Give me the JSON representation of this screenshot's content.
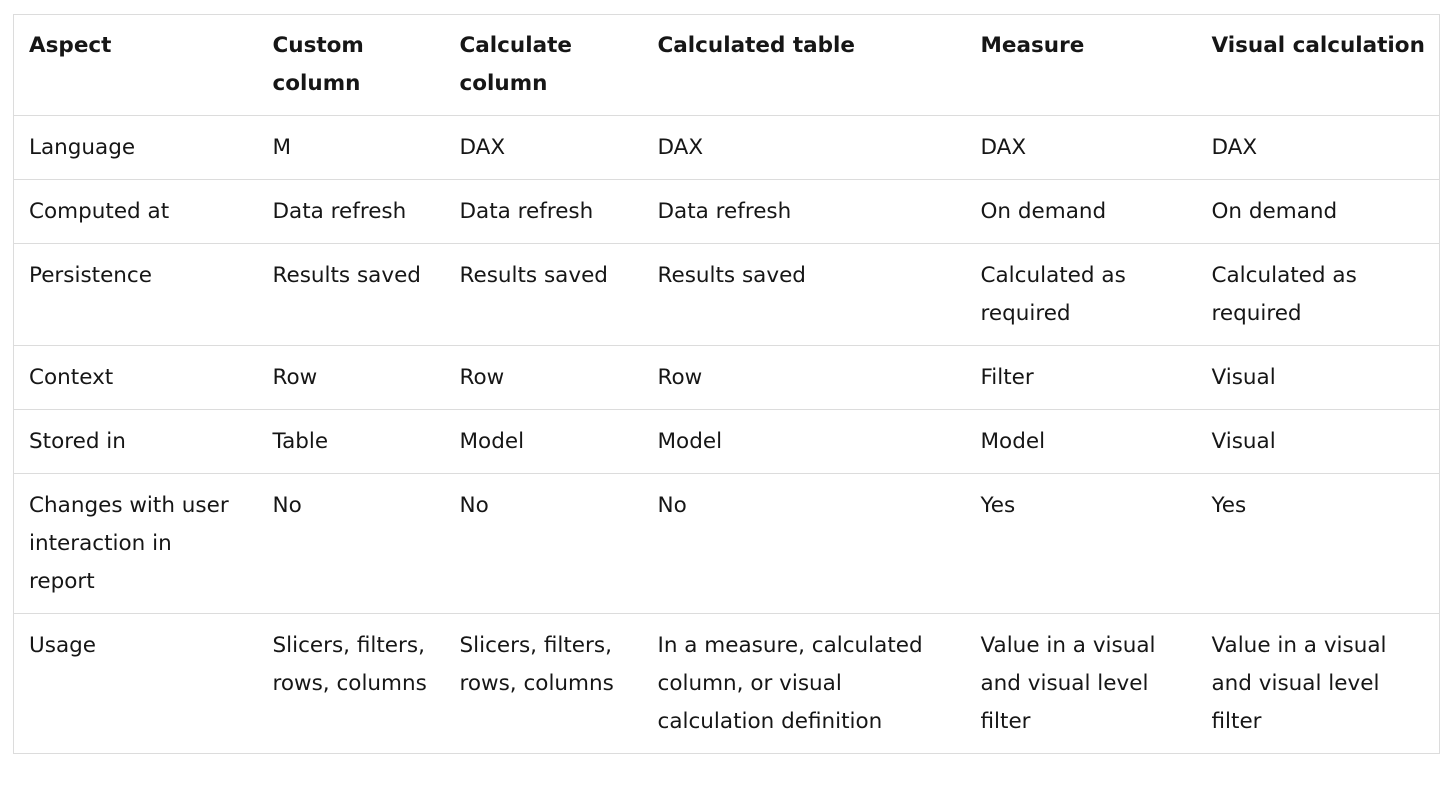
{
  "table": {
    "headers": [
      "Aspect",
      "Custom column",
      "Calculate column",
      "Calculated table",
      "Measure",
      "Visual calculation"
    ],
    "rows": [
      [
        "Language",
        "M",
        "DAX",
        "DAX",
        "DAX",
        "DAX"
      ],
      [
        "Computed at",
        "Data refresh",
        "Data refresh",
        "Data refresh",
        "On demand",
        "On demand"
      ],
      [
        "Persistence",
        "Results saved",
        "Results saved",
        "Results saved",
        "Calculated as required",
        "Calculated as required"
      ],
      [
        "Context",
        "Row",
        "Row",
        "Row",
        "Filter",
        "Visual"
      ],
      [
        "Stored in",
        "Table",
        "Model",
        "Model",
        "Model",
        "Visual"
      ],
      [
        "Changes with user interaction in report",
        "No",
        "No",
        "No",
        "Yes",
        "Yes"
      ],
      [
        "Usage",
        "Slicers, filters, rows, columns",
        "Slicers, filters, rows, columns",
        "In a measure, calculated column, or visual calculation definition",
        "Value in a visual and visual level filter",
        "Value in a visual and visual level filter"
      ]
    ]
  }
}
